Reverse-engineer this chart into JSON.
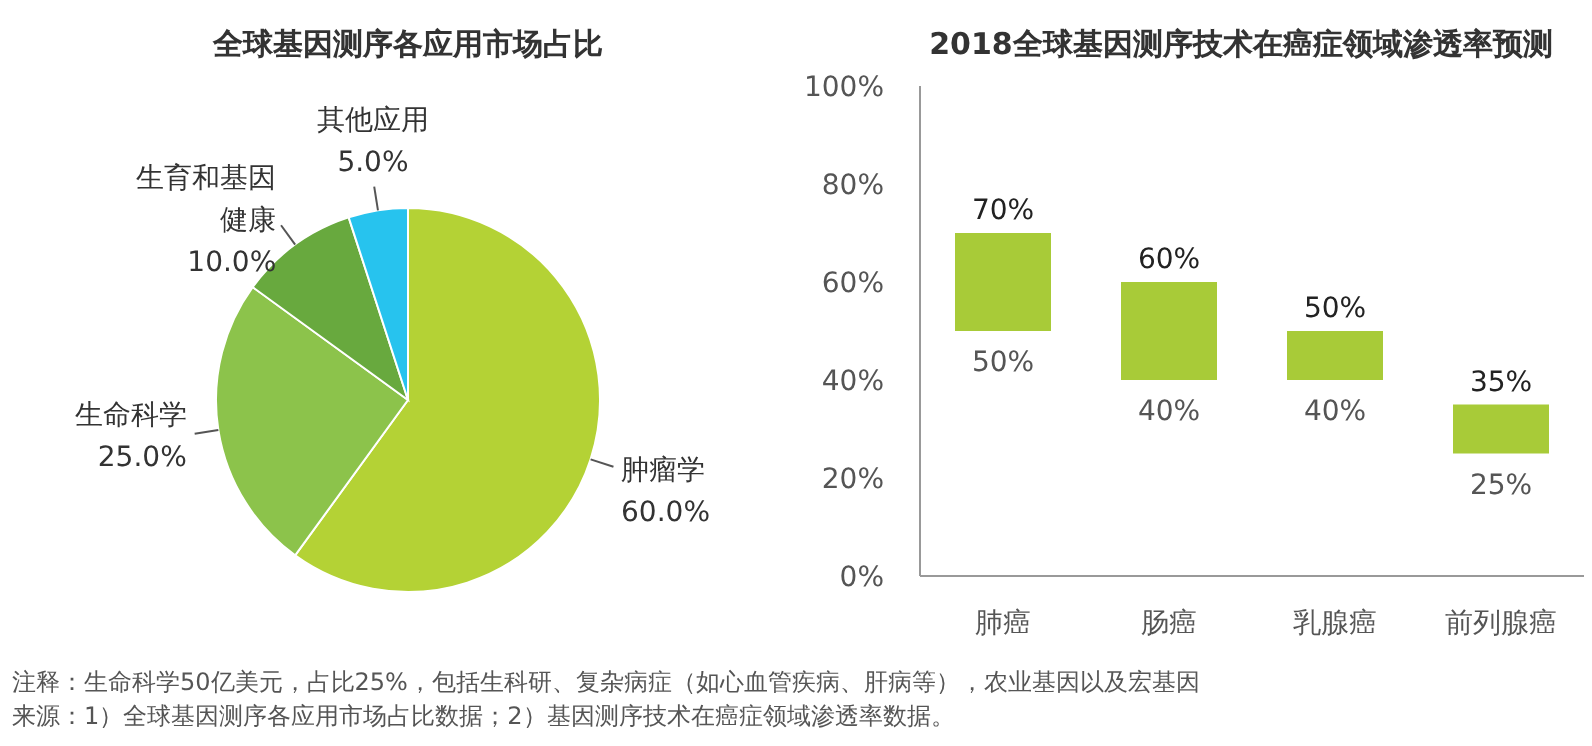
{
  "chart_data": [
    {
      "type": "pie",
      "title": "全球基因测序各应用市场占比",
      "categories": [
        "肿瘤学",
        "生命科学",
        "生育和基因健康",
        "其他应用"
      ],
      "values": [
        60,
        25,
        10,
        5
      ],
      "colors": [
        "#b4d235",
        "#8cc34b",
        "#68a93e",
        "#27c3ee"
      ],
      "value_labels": [
        "60.0%",
        "25.0%",
        "10.0%",
        "5.0%"
      ],
      "annotations": [
        "注释：生命科学50亿美元，占比25%，包括生科研、复杂病症（如心血管疾病、肝病等），农业基因以及宏基因",
        "来源：1）全球基因测序各应用市场占比数据；2）基因测序技术在癌症领域渗透率数据。"
      ]
    },
    {
      "type": "bar",
      "title": "2018全球基因测序技术在癌症领域渗透率预测",
      "categories": [
        "肺癌",
        "肠癌",
        "乳腺癌",
        "前列腺癌"
      ],
      "base": [
        50,
        40,
        40,
        25
      ],
      "values": [
        20,
        20,
        10,
        10
      ],
      "color": "#a8cb38",
      "ylim": [
        0,
        100
      ],
      "yticks": [
        {
          "value": 0,
          "label": "0%"
        },
        {
          "value": 20,
          "label": "20%"
        },
        {
          "value": 40,
          "label": "40%"
        },
        {
          "value": 60,
          "label": "60%"
        },
        {
          "value": 80,
          "label": "80%"
        },
        {
          "value": 100,
          "label": "100%"
        }
      ],
      "annotations": [
        {
          "text": "70%",
          "x": "肺癌",
          "y": 70
        },
        {
          "text": "50%",
          "x": "肺癌",
          "y": 50
        },
        {
          "text": "60%",
          "x": "肠癌",
          "y": 60
        },
        {
          "text": "40%",
          "x": "肠癌",
          "y": 40
        },
        {
          "text": "50%",
          "x": "乳腺癌",
          "y": 50
        },
        {
          "text": "40%",
          "x": "乳腺癌",
          "y": 40
        },
        {
          "text": "35%",
          "x": "前列腺癌",
          "y": 35
        },
        {
          "text": "25%",
          "x": "前列腺癌",
          "y": 25
        }
      ]
    }
  ]
}
